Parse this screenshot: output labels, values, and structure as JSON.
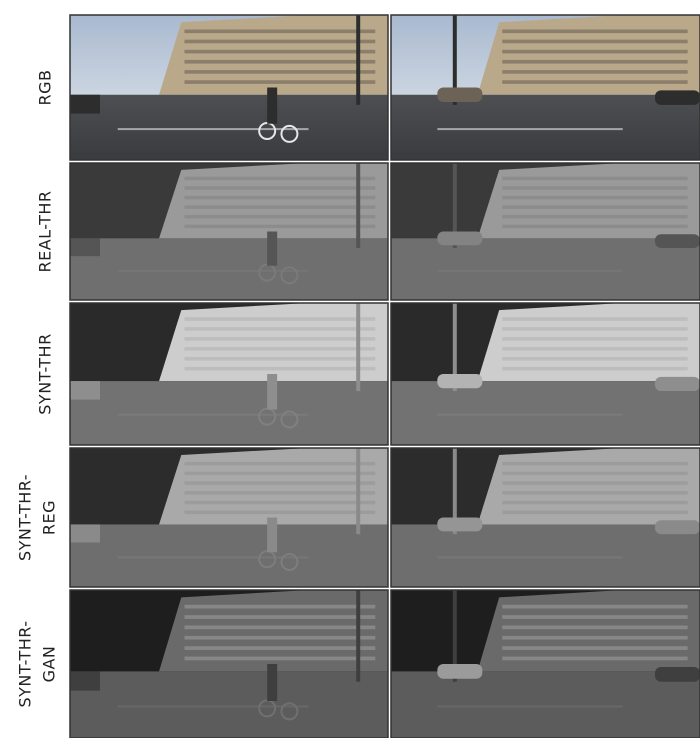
{
  "rows": [
    {
      "label": [
        "RGB"
      ]
    },
    {
      "label": [
        "REAL-THR"
      ]
    },
    {
      "label": [
        "SYNT-THR"
      ]
    },
    {
      "label": [
        "SYNT-THR-",
        "REG"
      ]
    },
    {
      "label": [
        "SYNT-THR-",
        "GAN"
      ]
    }
  ]
}
